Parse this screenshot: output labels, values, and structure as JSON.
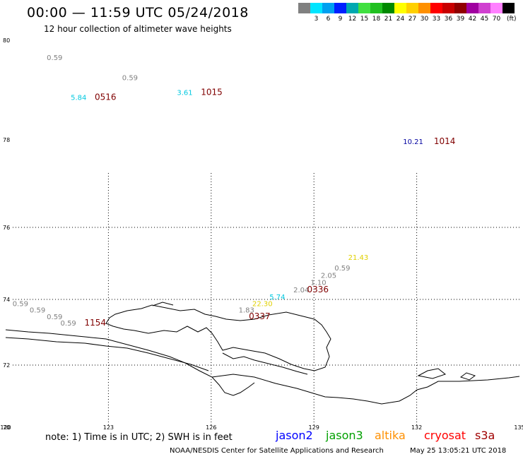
{
  "header": {
    "title": "00:00 — 11:59 UTC 05/24/2018",
    "subtitle": "12 hour collection of altimeter wave heights"
  },
  "colorbar": {
    "unit": "(ft)",
    "swatches": [
      {
        "color": "#808080",
        "label": ""
      },
      {
        "color": "#00e5ff",
        "label": "3"
      },
      {
        "color": "#00a0f0",
        "label": "6"
      },
      {
        "color": "#0020ff",
        "label": "9"
      },
      {
        "color": "#00a8b0",
        "label": "12"
      },
      {
        "color": "#40e040",
        "label": "15"
      },
      {
        "color": "#20c020",
        "label": "18"
      },
      {
        "color": "#008800",
        "label": "21"
      },
      {
        "color": "#ffff00",
        "label": "24"
      },
      {
        "color": "#ffd000",
        "label": "27"
      },
      {
        "color": "#ff9000",
        "label": "30"
      },
      {
        "color": "#ff0000",
        "label": "33"
      },
      {
        "color": "#c80000",
        "label": "36"
      },
      {
        "color": "#900000",
        "label": "39"
      },
      {
        "color": "#a000a0",
        "label": "42"
      },
      {
        "color": "#d040d0",
        "label": "45"
      },
      {
        "color": "#ff80ff",
        "label": "70"
      },
      {
        "color": "#000000",
        "label": ""
      }
    ]
  },
  "map": {
    "lon_range": [
      120,
      135
    ],
    "lat_range": [
      70,
      80
    ],
    "lon_ticks": [
      "120",
      "123",
      "126",
      "129",
      "132",
      "135"
    ],
    "lat_ticks": [
      "80",
      "78",
      "76",
      "74",
      "72",
      "70"
    ],
    "observations": [
      {
        "text": "0.59",
        "color": "#808080",
        "lon": 121.2,
        "lat": 79.6
      },
      {
        "text": "0.59",
        "color": "#808080",
        "lon": 123.4,
        "lat": 79.2
      },
      {
        "text": "5.84",
        "color": "#00c8e0",
        "lon": 121.9,
        "lat": 78.8
      },
      {
        "text": "3.61",
        "color": "#00c8e0",
        "lon": 125.0,
        "lat": 78.9
      },
      {
        "text": "10.21",
        "color": "#0000a0",
        "lon": 131.6,
        "lat": 77.9
      },
      {
        "text": "21.43",
        "color": "#e0d000",
        "lon": 130.0,
        "lat": 75.1
      },
      {
        "text": "0.59",
        "color": "#808080",
        "lon": 129.6,
        "lat": 74.8
      },
      {
        "text": "2.05",
        "color": "#808080",
        "lon": 129.2,
        "lat": 74.6
      },
      {
        "text": "1.10",
        "color": "#808080",
        "lon": 128.9,
        "lat": 74.4
      },
      {
        "text": "2.04",
        "color": "#808080",
        "lon": 128.4,
        "lat": 74.2
      },
      {
        "text": "5.74",
        "color": "#00c8e0",
        "lon": 127.7,
        "lat": 74.0
      },
      {
        "text": "22.30",
        "color": "#e0d000",
        "lon": 127.2,
        "lat": 73.8
      },
      {
        "text": "1.83",
        "color": "#808080",
        "lon": 126.8,
        "lat": 73.6
      },
      {
        "text": "0.59",
        "color": "#808080",
        "lon": 120.2,
        "lat": 73.8
      },
      {
        "text": "0.59",
        "color": "#808080",
        "lon": 120.7,
        "lat": 73.6
      },
      {
        "text": "0.59",
        "color": "#808080",
        "lon": 121.2,
        "lat": 73.4
      },
      {
        "text": "0.59",
        "color": "#808080",
        "lon": 121.6,
        "lat": 73.2
      }
    ],
    "time_labels": [
      {
        "text": "0516",
        "lon": 122.6,
        "lat": 78.8
      },
      {
        "text": "1015",
        "lon": 125.7,
        "lat": 78.9
      },
      {
        "text": "1014",
        "lon": 132.5,
        "lat": 77.9
      },
      {
        "text": "0336",
        "lon": 128.8,
        "lat": 74.2
      },
      {
        "text": "1154",
        "lon": 122.3,
        "lat": 73.2
      },
      {
        "text": "0337",
        "lon": 127.1,
        "lat": 73.4
      }
    ]
  },
  "legend": {
    "note": "note: 1) Time is in UTC; 2) SWH is in feet",
    "satellites": [
      {
        "name": "jason2",
        "color": "#0000ff"
      },
      {
        "name": "jason3",
        "color": "#00a000"
      },
      {
        "name": "altika",
        "color": "#ff9000"
      },
      {
        "name": "cryosat",
        "color": "#ff0000"
      },
      {
        "name": "s3a",
        "color": "#a00000"
      }
    ]
  },
  "footer": {
    "credit": "NOAA/NESDIS Center for Satellite Applications and Research",
    "timestamp": "May 25 13:05:21 UTC 2018"
  }
}
